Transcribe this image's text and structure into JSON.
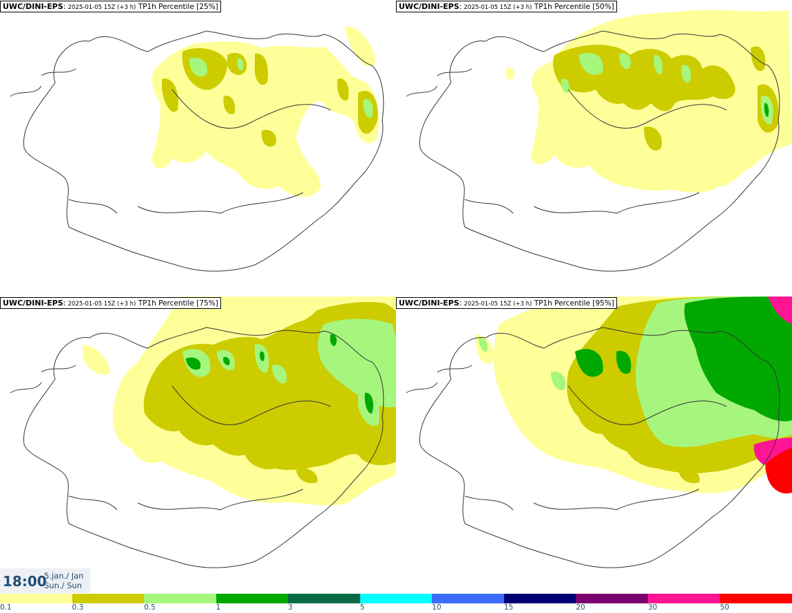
{
  "panels": [
    {
      "source": "UWC/DINI-EPS",
      "run": "2025-01-05 15Z (+3 h)",
      "product": "TP1h Percentile [25%]"
    },
    {
      "source": "UWC/DINI-EPS",
      "run": "2025-01-05 15Z (+3 h)",
      "product": "TP1h Percentile [50%]"
    },
    {
      "source": "UWC/DINI-EPS",
      "run": "2025-01-05 15Z (+3 h)",
      "product": "TP1h Percentile [75%]"
    },
    {
      "source": "UWC/DINI-EPS",
      "run": "2025-01-05 15Z (+3 h)",
      "product": "TP1h Percentile [95%]"
    }
  ],
  "valid_time": {
    "time": "18:00",
    "date_line1": "5.jan./ Jan",
    "date_line2": "Sun./ Sun"
  },
  "legend": {
    "labels": [
      "0.1",
      "0.3",
      "0.5",
      "1",
      "3",
      "5",
      "10",
      "15",
      "20",
      "30",
      "50"
    ],
    "colors": [
      "#ffff9a",
      "#cccc00",
      "#a6f67e",
      "#00a800",
      "#0a6a46",
      "#00ffff",
      "#3a6cf7",
      "#000075",
      "#7a0070",
      "#ff1493",
      "#ff0000"
    ]
  },
  "precip_colors": {
    "light": "#ffff9a",
    "moderate": "#cccc00",
    "heavy": "#a6f67e",
    "very_heavy": "#00a800"
  }
}
